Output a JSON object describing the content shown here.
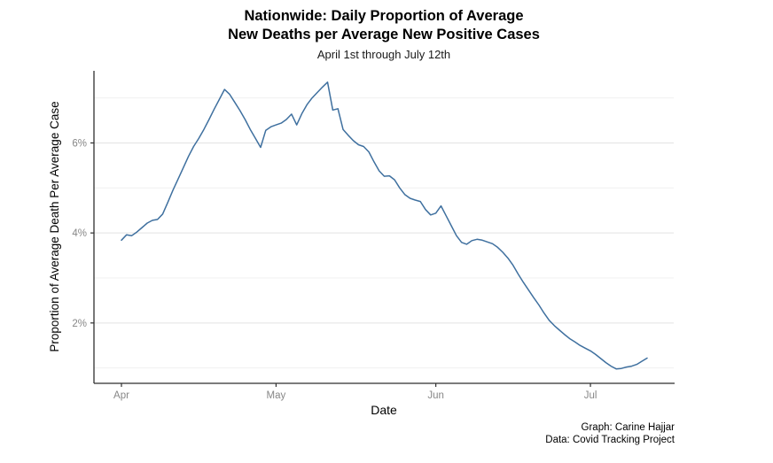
{
  "chart_data": {
    "type": "line",
    "title_line1": "Nationwide: Daily Proportion of Average",
    "title_line2": "New Deaths per Average New Positive Cases",
    "subtitle": "April 1st through July 12th",
    "xlabel": "Date",
    "ylabel": "Proportion of Average Death Per Average Case",
    "caption_line1": "Graph: Carine Hajjar",
    "caption_line2": "Data: Covid Tracking Project",
    "x_tick_labels": [
      "Apr",
      "May",
      "Jun",
      "Jul"
    ],
    "x_tick_day_index": [
      0,
      30,
      61,
      91
    ],
    "y_tick_values": [
      2,
      4,
      6
    ],
    "y_tick_labels": [
      "2%",
      "4%",
      "6%"
    ],
    "y_minor_gridlines": [
      1,
      3,
      5,
      7
    ],
    "y_unit": "percent",
    "ylim": [
      0.66,
      7.6
    ],
    "grid": "horizontal-only",
    "legend": "none",
    "x_start_date": "Apr 1",
    "x_end_date": "Jul 12",
    "x_frequency": "daily",
    "n_points": 103,
    "dates": [
      "Apr 1",
      "Apr 2",
      "Apr 3",
      "Apr 4",
      "Apr 5",
      "Apr 6",
      "Apr 7",
      "Apr 8",
      "Apr 9",
      "Apr 10",
      "Apr 11",
      "Apr 12",
      "Apr 13",
      "Apr 14",
      "Apr 15",
      "Apr 16",
      "Apr 17",
      "Apr 18",
      "Apr 19",
      "Apr 20",
      "Apr 21",
      "Apr 22",
      "Apr 23",
      "Apr 24",
      "Apr 25",
      "Apr 26",
      "Apr 27",
      "Apr 28",
      "Apr 29",
      "Apr 30",
      "May 1",
      "May 2",
      "May 3",
      "May 4",
      "May 5",
      "May 6",
      "May 7",
      "May 8",
      "May 9",
      "May 10",
      "May 11",
      "May 12",
      "May 13",
      "May 14",
      "May 15",
      "May 16",
      "May 17",
      "May 18",
      "May 19",
      "May 20",
      "May 21",
      "May 22",
      "May 23",
      "May 24",
      "May 25",
      "May 26",
      "May 27",
      "May 28",
      "May 29",
      "May 30",
      "May 31",
      "Jun 1",
      "Jun 2",
      "Jun 3",
      "Jun 4",
      "Jun 5",
      "Jun 6",
      "Jun 7",
      "Jun 8",
      "Jun 9",
      "Jun 10",
      "Jun 11",
      "Jun 12",
      "Jun 13",
      "Jun 14",
      "Jun 15",
      "Jun 16",
      "Jun 17",
      "Jun 18",
      "Jun 19",
      "Jun 20",
      "Jun 21",
      "Jun 22",
      "Jun 23",
      "Jun 24",
      "Jun 25",
      "Jun 26",
      "Jun 27",
      "Jun 28",
      "Jun 29",
      "Jun 30",
      "Jul 1",
      "Jul 2",
      "Jul 3",
      "Jul 4",
      "Jul 5",
      "Jul 6",
      "Jul 7",
      "Jul 8",
      "Jul 9",
      "Jul 10",
      "Jul 11",
      "Jul 12"
    ],
    "series": [
      {
        "name": "Daily proportion of average new deaths per average new positive cases (%)",
        "values": [
          3.84,
          3.96,
          3.94,
          4.02,
          4.12,
          4.22,
          4.28,
          4.3,
          4.42,
          4.68,
          4.95,
          5.2,
          5.45,
          5.7,
          5.92,
          6.1,
          6.3,
          6.52,
          6.75,
          6.97,
          7.19,
          7.08,
          6.9,
          6.72,
          6.52,
          6.3,
          6.1,
          5.9,
          6.28,
          6.36,
          6.4,
          6.44,
          6.52,
          6.64,
          6.4,
          6.65,
          6.85,
          7.0,
          7.12,
          7.24,
          7.35,
          6.73,
          6.76,
          6.3,
          6.17,
          6.05,
          5.96,
          5.92,
          5.8,
          5.58,
          5.38,
          5.26,
          5.27,
          5.18,
          5.0,
          4.85,
          4.77,
          4.73,
          4.7,
          4.52,
          4.4,
          4.44,
          4.6,
          4.38,
          4.16,
          3.94,
          3.79,
          3.75,
          3.83,
          3.86,
          3.84,
          3.8,
          3.76,
          3.68,
          3.57,
          3.44,
          3.28,
          3.08,
          2.9,
          2.73,
          2.56,
          2.4,
          2.22,
          2.06,
          1.94,
          1.84,
          1.74,
          1.65,
          1.58,
          1.5,
          1.44,
          1.38,
          1.3,
          1.21,
          1.12,
          1.04,
          0.98,
          0.99,
          1.02,
          1.04,
          1.08,
          1.15,
          1.22
        ]
      }
    ],
    "colors": {
      "line": "#3f709f",
      "grid_major": "#e3e3e3",
      "grid_minor": "#f0f0f0",
      "axis": "#2f2f2f",
      "tick_label": "#878787",
      "background": "#ffffff",
      "text": "#000000"
    }
  }
}
